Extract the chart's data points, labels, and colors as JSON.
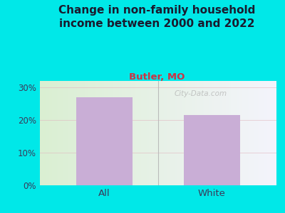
{
  "title": "Change in non-family household\nincome between 2000 and 2022",
  "subtitle": "Butler, MO",
  "categories": [
    "All",
    "White"
  ],
  "values": [
    27.0,
    21.5
  ],
  "bar_color": "#c9aed6",
  "title_fontsize": 11,
  "subtitle_fontsize": 9.5,
  "subtitle_color": "#cc3344",
  "title_color": "#1a1a2e",
  "tick_label_color": "#3a3a5a",
  "ylim": [
    0,
    32
  ],
  "yticks": [
    0,
    10,
    20,
    30
  ],
  "yticklabels": [
    "0%",
    "10%",
    "20%",
    "30%"
  ],
  "bg_outer": "#00e8e8",
  "bg_plot_left": "#daefd2",
  "bg_plot_right": "#f4f4fc",
  "watermark": "City-Data.com",
  "gridline_color": "#e0b8c0",
  "gridline_alpha": 0.6,
  "bar_width": 0.52,
  "separator_color": "#bbbbbb"
}
